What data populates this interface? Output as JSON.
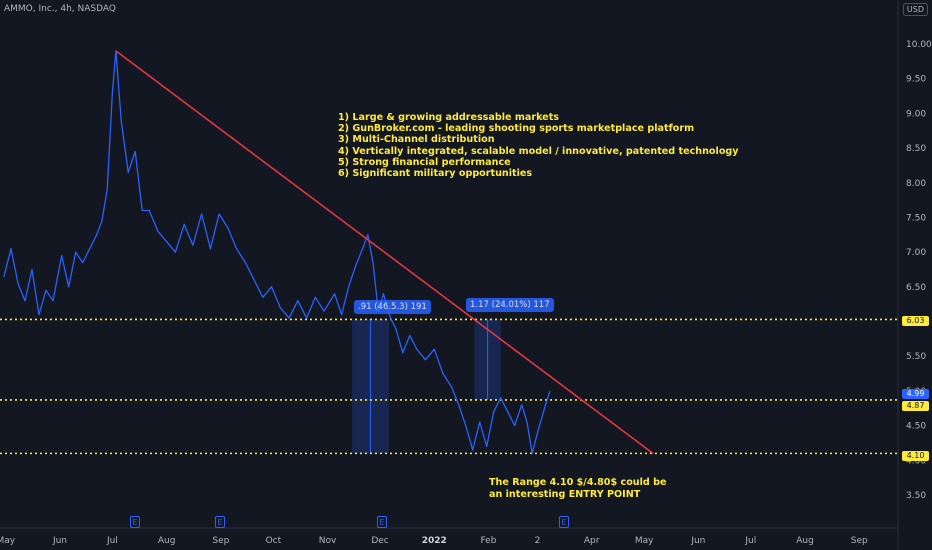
{
  "header": {
    "symbol": "AMMO, Inc., 4h, NASDAQ",
    "currency": "USD"
  },
  "colors": {
    "background": "#131722",
    "price_line": "#2962ff",
    "trend_line": "#f23645",
    "horizontal_levels": "#ffeb3b",
    "annotation_text": "#ffeb3b",
    "measure_box": "#2962ff",
    "current_price_tag": "#2962ff"
  },
  "annotations": {
    "reasons": [
      "1) Large & growing addressable markets",
      "2) GunBroker.com - leading shooting sports marketplace platform",
      "3) Multi-Channel distribution",
      "4) Vertically integrated, scalable model / innovative, patented technology",
      "5) Strong financial performance",
      "6) Significant military opportunities"
    ],
    "range_note": [
      "The Range 4.10 $/4.80$ could be",
      "an interesting ENTRY POINT"
    ],
    "measure_1": ".91 (46.5.3) 191",
    "measure_2": "1.17 (24.01%) 117"
  },
  "price_tags": {
    "level_high": "6.03",
    "current": "4.99",
    "level_mid": "4.87",
    "level_low": "4.10"
  },
  "earnings_icon": "E",
  "chart_data": {
    "type": "line",
    "title": "AMMO, Inc., 4h, NASDAQ",
    "ylabel": "",
    "xlabel": "",
    "ylim": [
      3.0,
      10.3
    ],
    "y_ticks": [
      "3.50",
      "4.00",
      "4.50",
      "5.00",
      "5.50",
      "6.00",
      "6.50",
      "7.00",
      "7.50",
      "8.00",
      "8.50",
      "9.00",
      "9.50",
      "10.00"
    ],
    "x_ticks": [
      "May",
      "Jun",
      "Jul",
      "Aug",
      "Sep",
      "Oct",
      "Nov",
      "Dec",
      "2022",
      "Feb",
      "2",
      "Apr",
      "May",
      "Jun",
      "Jul",
      "Aug",
      "Sep"
    ],
    "x_ticks_strong": [
      "2022"
    ],
    "x_range": [
      "2021-04-30",
      "2022-09-30"
    ],
    "series": [
      {
        "points": [
          [
            "2021-04-30",
            6.65
          ],
          [
            "2021-05-04",
            7.05
          ],
          [
            "2021-05-08",
            6.55
          ],
          [
            "2021-05-12",
            6.3
          ],
          [
            "2021-05-16",
            6.75
          ],
          [
            "2021-05-20",
            6.1
          ],
          [
            "2021-05-24",
            6.45
          ],
          [
            "2021-05-28",
            6.3
          ],
          [
            "2021-06-02",
            6.95
          ],
          [
            "2021-06-06",
            6.5
          ],
          [
            "2021-06-10",
            7.0
          ],
          [
            "2021-06-14",
            6.85
          ],
          [
            "2021-06-18",
            7.05
          ],
          [
            "2021-06-22",
            7.25
          ],
          [
            "2021-06-25",
            7.45
          ],
          [
            "2021-06-28",
            7.9
          ],
          [
            "2021-07-01",
            9.3
          ],
          [
            "2021-07-03",
            9.9
          ],
          [
            "2021-07-06",
            8.9
          ],
          [
            "2021-07-10",
            8.15
          ],
          [
            "2021-07-14",
            8.45
          ],
          [
            "2021-07-18",
            7.6
          ],
          [
            "2021-07-22",
            7.6
          ],
          [
            "2021-07-27",
            7.3
          ],
          [
            "2021-08-01",
            7.15
          ],
          [
            "2021-08-06",
            7.0
          ],
          [
            "2021-08-11",
            7.4
          ],
          [
            "2021-08-16",
            7.1
          ],
          [
            "2021-08-21",
            7.55
          ],
          [
            "2021-08-26",
            7.05
          ],
          [
            "2021-08-31",
            7.55
          ],
          [
            "2021-09-05",
            7.35
          ],
          [
            "2021-09-10",
            7.05
          ],
          [
            "2021-09-15",
            6.85
          ],
          [
            "2021-09-20",
            6.6
          ],
          [
            "2021-09-25",
            6.35
          ],
          [
            "2021-09-30",
            6.5
          ],
          [
            "2021-10-05",
            6.2
          ],
          [
            "2021-10-10",
            6.05
          ],
          [
            "2021-10-15",
            6.3
          ],
          [
            "2021-10-20",
            6.05
          ],
          [
            "2021-10-25",
            6.35
          ],
          [
            "2021-10-30",
            6.15
          ],
          [
            "2021-11-05",
            6.4
          ],
          [
            "2021-11-09",
            6.1
          ],
          [
            "2021-11-13",
            6.5
          ],
          [
            "2021-11-17",
            6.8
          ],
          [
            "2021-11-21",
            7.05
          ],
          [
            "2021-11-24",
            7.25
          ],
          [
            "2021-11-27",
            6.85
          ],
          [
            "2021-11-30",
            6.15
          ],
          [
            "2021-12-03",
            6.4
          ],
          [
            "2021-12-07",
            6.05
          ],
          [
            "2021-12-10",
            5.9
          ],
          [
            "2021-12-14",
            5.55
          ],
          [
            "2021-12-18",
            5.8
          ],
          [
            "2021-12-22",
            5.6
          ],
          [
            "2021-12-27",
            5.45
          ],
          [
            "2022-01-01",
            5.6
          ],
          [
            "2022-01-06",
            5.25
          ],
          [
            "2022-01-11",
            5.05
          ],
          [
            "2022-01-15",
            4.8
          ],
          [
            "2022-01-19",
            4.5
          ],
          [
            "2022-01-23",
            4.15
          ],
          [
            "2022-01-27",
            4.55
          ],
          [
            "2022-01-31",
            4.2
          ],
          [
            "2022-02-04",
            4.7
          ],
          [
            "2022-02-08",
            4.9
          ],
          [
            "2022-02-12",
            4.7
          ],
          [
            "2022-02-16",
            4.5
          ],
          [
            "2022-02-20",
            4.8
          ],
          [
            "2022-02-23",
            4.55
          ],
          [
            "2022-02-26",
            4.1
          ],
          [
            "2022-03-01",
            4.4
          ],
          [
            "2022-03-05",
            4.75
          ],
          [
            "2022-03-08",
            4.99
          ]
        ]
      }
    ],
    "trend_line": [
      [
        "2021-07-03",
        9.9
      ],
      [
        "2022-05-06",
        4.1
      ]
    ],
    "horizontal_levels": [
      6.03,
      4.87,
      4.1
    ],
    "measure_ranges": [
      {
        "from": "2021-11-15",
        "to": "2021-12-06",
        "low": 4.1,
        "high": 6.03
      },
      {
        "from": "2022-01-24",
        "to": "2022-02-08",
        "low": 4.87,
        "high": 6.03
      }
    ],
    "grid": false
  }
}
